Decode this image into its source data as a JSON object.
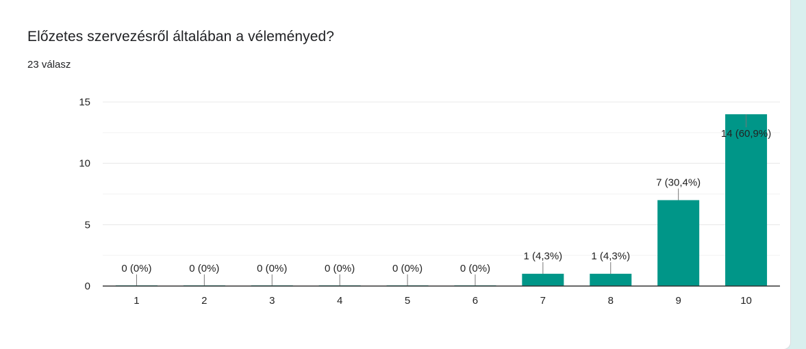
{
  "question": {
    "title": "Előzetes szervezésről általában a véleményed?",
    "response_count": "23 válasz"
  },
  "colors": {
    "bar": "#009688",
    "grid": "#e8e8e8",
    "axis": "#333333",
    "text": "#222222",
    "background": "#d9efee"
  },
  "chart_data": {
    "type": "bar",
    "categories": [
      "1",
      "2",
      "3",
      "4",
      "5",
      "6",
      "7",
      "8",
      "9",
      "10"
    ],
    "values": [
      0,
      0,
      0,
      0,
      0,
      0,
      1,
      1,
      7,
      14
    ],
    "data_labels": [
      "0 (0%)",
      "0 (0%)",
      "0 (0%)",
      "0 (0%)",
      "0 (0%)",
      "0 (0%)",
      "1 (4,3%)",
      "1 (4,3%)",
      "7 (30,4%)",
      "14 (60,9%)"
    ],
    "y_ticks": [
      "0",
      "5",
      "10",
      "15"
    ],
    "ylim": [
      0,
      15
    ],
    "minor_grid_step": 2.5,
    "title": "",
    "xlabel": "",
    "ylabel": "",
    "grid": true,
    "legend": "none"
  }
}
